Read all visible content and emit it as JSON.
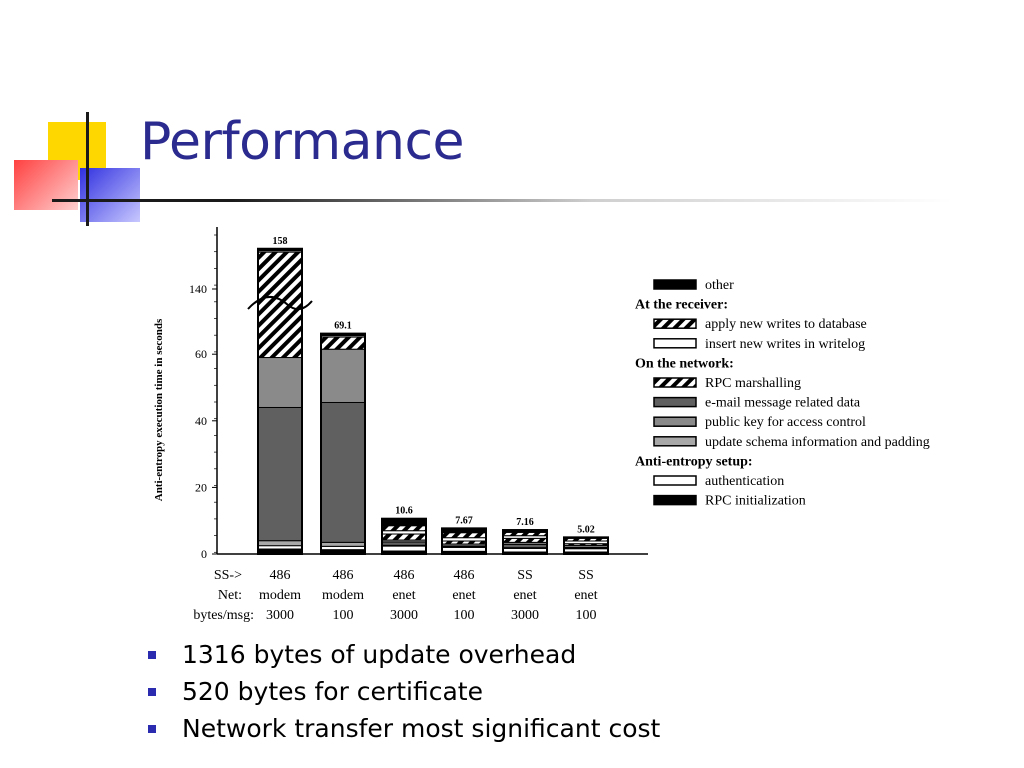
{
  "slide": {
    "title": "Performance",
    "bullets": [
      "1316 bytes of update overhead",
      "520 bytes for certificate",
      "Network transfer most significant cost"
    ]
  },
  "colors": {
    "title": "#2b2b8f",
    "bullet": "#2b2bb0",
    "deco_yellow": "#ffd700",
    "deco_red": "#ff4a4a",
    "deco_blue": "#3a3ae0"
  },
  "chart_data": {
    "type": "bar",
    "stacked": true,
    "ylabel": "Anti-entropy execution time in seconds",
    "yticks": [
      "0",
      "20",
      "40",
      "60",
      "140"
    ],
    "axis_break": "between 60 and 140",
    "row_labels": [
      "SS->",
      "Net:",
      "bytes/msg:"
    ],
    "categories": [
      {
        "ss": "486",
        "net": "modem",
        "bytes": "3000",
        "total": "158"
      },
      {
        "ss": "486",
        "net": "modem",
        "bytes": "100",
        "total": "69.1"
      },
      {
        "ss": "486",
        "net": "enet",
        "bytes": "3000",
        "total": "10.6"
      },
      {
        "ss": "486",
        "net": "enet",
        "bytes": "100",
        "total": "7.67"
      },
      {
        "ss": "SS",
        "net": "enet",
        "bytes": "3000",
        "total": "7.16"
      },
      {
        "ss": "SS",
        "net": "enet",
        "bytes": "100",
        "total": "5.02"
      }
    ],
    "legend": {
      "placement": "right",
      "items": [
        {
          "kind": "item",
          "text": "other",
          "fill": "#000000"
        },
        {
          "kind": "heading",
          "text": "At the receiver:"
        },
        {
          "kind": "item",
          "text": "apply new writes to database",
          "fill": "stripe"
        },
        {
          "kind": "item",
          "text": "insert new writes in writelog",
          "fill": "#ffffff"
        },
        {
          "kind": "heading",
          "text": "On the network:"
        },
        {
          "kind": "item",
          "text": "RPC marshalling",
          "fill": "stripe"
        },
        {
          "kind": "item",
          "text": "e-mail message related data",
          "fill": "#606060"
        },
        {
          "kind": "item",
          "text": "public key for access control",
          "fill": "#8a8a8a"
        },
        {
          "kind": "item",
          "text": "update schema information and padding",
          "fill": "#a8a8a8"
        },
        {
          "kind": "heading",
          "text": "Anti-entropy setup:"
        },
        {
          "kind": "item",
          "text": "authentication",
          "fill": "#ffffff"
        },
        {
          "kind": "item",
          "text": "RPC initialization",
          "fill": "#000000"
        }
      ]
    },
    "series": [
      {
        "name": "RPC initialization",
        "values": [
          1.5,
          1.3,
          0.9,
          0.8,
          0.6,
          0.6
        ]
      },
      {
        "name": "authentication",
        "values": [
          1.0,
          1.0,
          1.5,
          1.3,
          1.2,
          1.1
        ]
      },
      {
        "name": "update schema information and padding",
        "values": [
          1.5,
          1.2,
          0.2,
          0.1,
          0.1,
          0.1
        ]
      },
      {
        "name": "e-mail message related data",
        "values": [
          40,
          42,
          1.0,
          0.2,
          1.0,
          0.2
        ]
      },
      {
        "name": "public key for access control",
        "values": [
          15,
          16,
          0.6,
          0.6,
          0.6,
          0.6
        ]
      },
      {
        "name": "RPC marshalling",
        "values": [
          95,
          4,
          1.8,
          0.9,
          1.2,
          0.5
        ]
      },
      {
        "name": "insert new writes in writelog",
        "values": [
          1.5,
          1.5,
          1.0,
          1.0,
          0.8,
          0.8
        ]
      },
      {
        "name": "apply new writes to database",
        "values": [
          1.0,
          1.0,
          1.5,
          1.5,
          1.0,
          0.8
        ]
      },
      {
        "name": "other",
        "values": [
          1.0,
          1.1,
          2.1,
          1.3,
          0.7,
          0.3
        ]
      }
    ]
  }
}
